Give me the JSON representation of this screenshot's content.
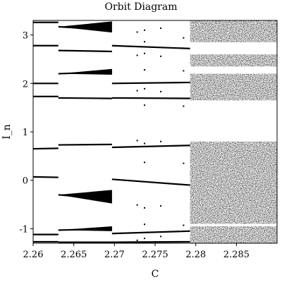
{
  "chart_data": {
    "type": "scatter",
    "title": "Orbit Diagram",
    "xlabel": "C",
    "ylabel": "I_n",
    "xlim": [
      2.26,
      2.29
    ],
    "ylim": [
      -1.3,
      3.3
    ],
    "grid": false,
    "legend": "none",
    "marker_color": "#000000",
    "x_ticks": [
      {
        "value": 2.26,
        "label": "2.26"
      },
      {
        "value": 2.265,
        "label": "2.265"
      },
      {
        "value": 2.27,
        "label": "2.27"
      },
      {
        "value": 2.275,
        "label": "2.275"
      },
      {
        "value": 2.28,
        "label": "2.28"
      },
      {
        "value": 2.285,
        "label": "2.285"
      }
    ],
    "y_ticks": [
      {
        "value": -1,
        "label": "-1"
      },
      {
        "value": 0,
        "label": "0"
      },
      {
        "value": 1,
        "label": "1"
      },
      {
        "value": 2,
        "label": "2"
      },
      {
        "value": 3,
        "label": "3"
      }
    ],
    "branches": [
      {
        "x": [
          2.26,
          2.2631
        ],
        "y": [
          3.26,
          3.26
        ]
      },
      {
        "x": [
          2.26,
          2.2631
        ],
        "y": [
          2.78,
          2.78
        ]
      },
      {
        "x": [
          2.26,
          2.2631
        ],
        "y": [
          2.0,
          2.0
        ]
      },
      {
        "x": [
          2.26,
          2.2631
        ],
        "y": [
          1.73,
          1.73
        ]
      },
      {
        "x": [
          2.26,
          2.2631
        ],
        "y": [
          0.65,
          0.66
        ]
      },
      {
        "x": [
          2.26,
          2.2631
        ],
        "y": [
          0.07,
          0.06
        ]
      },
      {
        "x": [
          2.26,
          2.2631
        ],
        "y": [
          -1.12,
          -1.12
        ]
      },
      {
        "x": [
          2.26,
          2.2631
        ],
        "y": [
          -1.27,
          -1.27
        ]
      },
      {
        "x": [
          2.2631,
          2.2697
        ],
        "y": [
          3.17,
          3.1
        ]
      },
      {
        "x": [
          2.2631,
          2.2697
        ],
        "y": [
          2.68,
          2.66
        ]
      },
      {
        "x": [
          2.2631,
          2.2697
        ],
        "y": [
          2.2,
          2.24
        ]
      },
      {
        "x": [
          2.2631,
          2.2697
        ],
        "y": [
          1.7,
          1.69
        ]
      },
      {
        "x": [
          2.2631,
          2.2697
        ],
        "y": [
          0.73,
          0.74
        ]
      },
      {
        "x": [
          2.2631,
          2.2697
        ],
        "y": [
          -0.3,
          -0.4
        ]
      },
      {
        "x": [
          2.2631,
          2.2697
        ],
        "y": [
          -1.03,
          -1.0
        ]
      },
      {
        "x": [
          2.2631,
          2.2697
        ],
        "y": [
          -1.28,
          -1.28
        ]
      },
      {
        "x": [
          2.2697,
          2.2793
        ],
        "y": [
          2.78,
          2.72
        ]
      },
      {
        "x": [
          2.2697,
          2.2793
        ],
        "y": [
          2.0,
          2.02
        ]
      },
      {
        "x": [
          2.2697,
          2.2793
        ],
        "y": [
          1.7,
          1.69
        ]
      },
      {
        "x": [
          2.2697,
          2.2793
        ],
        "y": [
          0.68,
          0.72
        ]
      },
      {
        "x": [
          2.2697,
          2.2793
        ],
        "y": [
          0.02,
          -0.1
        ]
      },
      {
        "x": [
          2.2697,
          2.2793
        ],
        "y": [
          -1.1,
          -1.05
        ]
      },
      {
        "x": [
          2.2697,
          2.2793
        ],
        "y": [
          -1.28,
          -1.27
        ]
      }
    ],
    "fans": [
      {
        "x": [
          2.2631,
          2.2697
        ],
        "y_lo": [
          3.17,
          3.05
        ],
        "y_hi": [
          3.17,
          3.28
        ]
      },
      {
        "x": [
          2.2631,
          2.2697
        ],
        "y_lo": [
          2.2,
          2.18
        ],
        "y_hi": [
          2.2,
          2.3
        ]
      },
      {
        "x": [
          2.2631,
          2.2697
        ],
        "y_lo": [
          -0.3,
          -0.48
        ],
        "y_hi": [
          -0.3,
          -0.2
        ]
      },
      {
        "x": [
          2.2631,
          2.2697
        ],
        "y_lo": [
          -1.03,
          -1.05
        ],
        "y_hi": [
          -1.03,
          -0.95
        ]
      }
    ],
    "chaotic_bands": [
      {
        "x": [
          2.2793,
          2.29
        ],
        "y": [
          2.85,
          3.3
        ]
      },
      {
        "x": [
          2.2793,
          2.29
        ],
        "y": [
          2.35,
          2.6
        ]
      },
      {
        "x": [
          2.2793,
          2.29
        ],
        "y": [
          1.65,
          2.2
        ]
      },
      {
        "x": [
          2.2793,
          2.29
        ],
        "y": [
          -0.9,
          0.8
        ]
      },
      {
        "x": [
          2.2793,
          2.29
        ],
        "y": [
          -1.3,
          -0.95
        ]
      }
    ]
  }
}
